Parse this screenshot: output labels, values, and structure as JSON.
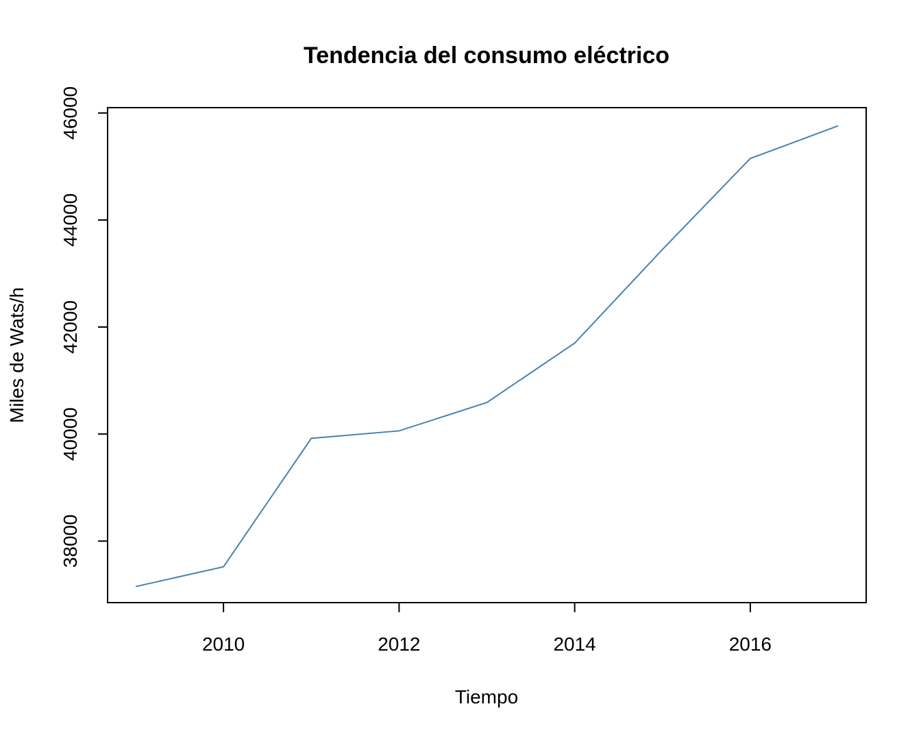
{
  "chart_data": {
    "type": "line",
    "title": "Tendencia del consumo eléctrico",
    "xlabel": "Tiempo",
    "ylabel": "Miles de Wats/h",
    "x": [
      2009,
      2010,
      2011,
      2012,
      2013,
      2014,
      2015,
      2016,
      2017
    ],
    "series": [
      {
        "values": [
          37150,
          37520,
          39920,
          40060,
          40590,
          41700,
          43450,
          45150,
          45760
        ],
        "color": "#4682B4"
      }
    ],
    "xlim": [
      2008.68,
      2017.32
    ],
    "ylim": [
      36850,
      46100
    ],
    "xticks": [
      2010,
      2012,
      2014,
      2016
    ],
    "yticks": [
      38000,
      40000,
      42000,
      44000,
      46000
    ],
    "xtick_labels": [
      "2010",
      "2012",
      "2014",
      "2016"
    ],
    "ytick_labels": [
      "38000",
      "40000",
      "42000",
      "44000",
      "46000"
    ],
    "grid": false,
    "legend": false
  }
}
